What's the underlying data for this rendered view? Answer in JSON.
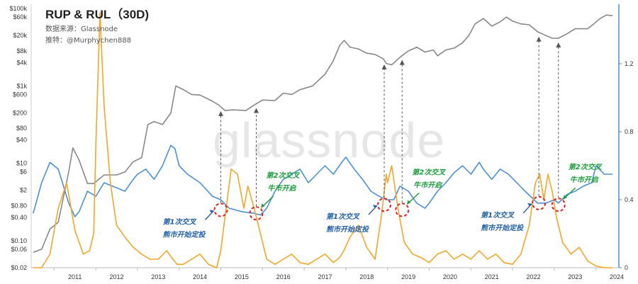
{
  "chart_data": {
    "type": "line",
    "title": "RUP & RUL（30D)",
    "source_line": "数据来源：Glassnode",
    "author_line": "推特：@Murphychen888",
    "watermark": "glassnode",
    "x_ticks": [
      "2011",
      "2012",
      "2013",
      "2014",
      "2015",
      "2016",
      "2017",
      "2018",
      "2019",
      "2020",
      "2021",
      "2022",
      "2023",
      "2024"
    ],
    "y_left_ticks": [
      "$100k",
      "$60k",
      "$20k",
      "$8k",
      "$4k",
      "$1k",
      "$600",
      "$200",
      "$80",
      "$40",
      "$10",
      "$6",
      "$2",
      "$0.80",
      "$0.40",
      "$0.10",
      "$0.06",
      "$0.02"
    ],
    "y_right_ticks": [
      "1.2",
      "0.8",
      "0.4",
      "0"
    ],
    "ylim_right": [
      0,
      1.55
    ],
    "series": [
      {
        "name": "",
        "axis": "left-log",
        "color": "#888888",
        "x": [
          2010.5,
          2010.7,
          2010.9,
          2011.1,
          2011.35,
          2011.45,
          2011.6,
          2011.8,
          2011.95,
          2012.2,
          2012.5,
          2012.7,
          2012.9,
          2013.1,
          2013.25,
          2013.4,
          2013.6,
          2013.8,
          2013.92,
          2014.1,
          2014.3,
          2014.5,
          2014.8,
          2014.95,
          2015.1,
          2015.3,
          2015.6,
          2015.8,
          2016.0,
          2016.3,
          2016.5,
          2016.7,
          2016.9,
          2017.2,
          2017.5,
          2017.7,
          2017.85,
          2017.96,
          2018.1,
          2018.3,
          2018.5,
          2018.7,
          2018.9,
          2018.97,
          2019.1,
          2019.3,
          2019.5,
          2019.7,
          2019.9,
          2020.1,
          2020.2,
          2020.4,
          2020.6,
          2020.8,
          2020.95,
          2021.1,
          2021.3,
          2021.5,
          2021.7,
          2021.85,
          2022.0,
          2022.2,
          2022.4,
          2022.6,
          2022.8,
          2022.95,
          2023.1,
          2023.3,
          2023.5,
          2023.8,
          2023.95,
          2024.1,
          2024.25,
          2024.4
        ],
        "values": [
          0.05,
          0.06,
          0.2,
          0.3,
          6,
          25,
          12,
          3,
          3,
          5,
          5,
          6,
          11,
          14,
          100,
          120,
          100,
          200,
          1000,
          800,
          600,
          580,
          400,
          320,
          230,
          240,
          230,
          320,
          430,
          420,
          650,
          600,
          800,
          1000,
          2000,
          4500,
          11000,
          15000,
          10000,
          9000,
          7000,
          6500,
          5000,
          3800,
          3500,
          5500,
          8000,
          10000,
          7500,
          8500,
          6000,
          8500,
          9500,
          13000,
          20000,
          40000,
          55000,
          35000,
          45000,
          60000,
          47000,
          40000,
          38000,
          25000,
          20000,
          17000,
          17000,
          22000,
          30000,
          30000,
          40000,
          55000,
          68000,
          65000
        ]
      },
      {
        "name": "",
        "axis": "right",
        "color": "#4a90d9",
        "x": [
          2010.5,
          2010.7,
          2010.9,
          2011.1,
          2011.2,
          2011.35,
          2011.5,
          2011.6,
          2011.8,
          2012.0,
          2012.2,
          2012.5,
          2012.7,
          2012.9,
          2013.0,
          2013.2,
          2013.4,
          2013.6,
          2013.8,
          2013.9,
          2014.0,
          2014.2,
          2014.5,
          2014.8,
          2015.0,
          2015.2,
          2015.5,
          2015.8,
          2015.95,
          2016.1,
          2016.3,
          2016.5,
          2016.7,
          2016.9,
          2017.1,
          2017.3,
          2017.5,
          2017.7,
          2017.9,
          2018.0,
          2018.2,
          2018.4,
          2018.6,
          2018.8,
          2018.97,
          2019.15,
          2019.3,
          2019.5,
          2019.7,
          2019.9,
          2020.0,
          2020.2,
          2020.4,
          2020.6,
          2020.8,
          2021.0,
          2021.2,
          2021.3,
          2021.5,
          2021.7,
          2021.9,
          2022.1,
          2022.3,
          2022.6,
          2022.8,
          2023.0,
          2023.1,
          2023.3,
          2023.5,
          2023.7,
          2023.9,
          2024.0,
          2024.2,
          2024.4
        ],
        "values": [
          0.32,
          0.5,
          0.62,
          0.58,
          0.5,
          0.38,
          0.3,
          0.33,
          0.45,
          0.42,
          0.5,
          0.47,
          0.45,
          0.52,
          0.55,
          0.58,
          0.52,
          0.6,
          0.72,
          0.7,
          0.6,
          0.55,
          0.5,
          0.42,
          0.4,
          0.35,
          0.33,
          0.32,
          0.31,
          0.35,
          0.45,
          0.52,
          0.55,
          0.58,
          0.5,
          0.55,
          0.6,
          0.55,
          0.62,
          0.65,
          0.58,
          0.52,
          0.45,
          0.42,
          0.4,
          0.4,
          0.48,
          0.45,
          0.38,
          0.35,
          0.38,
          0.45,
          0.5,
          0.56,
          0.6,
          0.55,
          0.62,
          0.58,
          0.52,
          0.58,
          0.55,
          0.5,
          0.45,
          0.38,
          0.38,
          0.4,
          0.38,
          0.43,
          0.45,
          0.48,
          0.5,
          0.6,
          0.55,
          0.55
        ]
      },
      {
        "name": "",
        "axis": "right",
        "color": "#f5a623",
        "x": [
          2010.5,
          2010.7,
          2010.9,
          2011.1,
          2011.3,
          2011.5,
          2011.7,
          2011.85,
          2011.95,
          2012.0,
          2012.1,
          2012.2,
          2012.35,
          2012.5,
          2012.7,
          2012.9,
          2013.1,
          2013.3,
          2013.5,
          2013.7,
          2013.85,
          2013.95,
          2014.1,
          2014.3,
          2014.5,
          2014.7,
          2014.9,
          2015.0,
          2015.1,
          2015.25,
          2015.4,
          2015.55,
          2015.65,
          2015.8,
          2015.95,
          2016.1,
          2016.3,
          2016.5,
          2016.7,
          2016.9,
          2017.1,
          2017.3,
          2017.5,
          2017.7,
          2017.85,
          2017.95,
          2018.1,
          2018.3,
          2018.5,
          2018.7,
          2018.85,
          2018.97,
          2019.0,
          2019.1,
          2019.25,
          2019.4,
          2019.6,
          2019.8,
          2020.0,
          2020.2,
          2020.4,
          2020.6,
          2020.8,
          2021.0,
          2021.2,
          2021.4,
          2021.6,
          2021.8,
          2022.0,
          2022.2,
          2022.4,
          2022.55,
          2022.65,
          2022.75,
          2022.85,
          2022.95,
          2023.05,
          2023.2,
          2023.4,
          2023.6,
          2023.8,
          2024.0,
          2024.2,
          2024.4
        ],
        "values": [
          0.0,
          0.0,
          0.08,
          0.35,
          0.5,
          0.22,
          0.08,
          0.1,
          0.2,
          0.7,
          1.5,
          0.95,
          0.5,
          0.25,
          0.18,
          0.12,
          0.08,
          0.05,
          0.05,
          0.1,
          0.05,
          0.02,
          0.02,
          0.05,
          0.08,
          0.02,
          0.0,
          0.1,
          0.3,
          0.58,
          0.55,
          0.35,
          0.48,
          0.35,
          0.2,
          0.05,
          0.02,
          0.05,
          0.08,
          0.03,
          0.02,
          0.05,
          0.08,
          0.03,
          0.06,
          0.1,
          0.18,
          0.25,
          0.12,
          0.05,
          0.3,
          0.55,
          0.5,
          0.6,
          0.35,
          0.15,
          0.08,
          0.06,
          0.03,
          0.08,
          0.1,
          0.05,
          0.08,
          0.05,
          0.1,
          0.05,
          0.08,
          0.03,
          0.02,
          0.08,
          0.25,
          0.5,
          0.55,
          0.4,
          0.55,
          0.45,
          0.3,
          0.15,
          0.08,
          0.12,
          0.04,
          0.01,
          0.0,
          0.0
        ]
      }
    ],
    "markers": [
      {
        "x": 2015.0,
        "axis_value": 0.34,
        "label_lines": [
          "第1次交叉",
          "熊市开始定投"
        ],
        "label_color": "#1f5fa8",
        "label_side": "left"
      },
      {
        "x": 2015.85,
        "axis_value": 0.32,
        "label_lines": [
          "第2次交叉",
          "牛市开启"
        ],
        "label_color": "#1a9e3a",
        "label_side": "right"
      },
      {
        "x": 2018.92,
        "axis_value": 0.37,
        "label_lines": [
          "第1次交叉",
          "熊市开始定投"
        ],
        "label_color": "#1f5fa8",
        "label_side": "left"
      },
      {
        "x": 2019.35,
        "axis_value": 0.34,
        "label_lines": [
          "第2次交叉",
          "牛市开启"
        ],
        "label_color": "#1a9e3a",
        "label_side": "right"
      },
      {
        "x": 2022.63,
        "axis_value": 0.38,
        "label_lines": [
          "第1次交叉",
          "熊市开始定投"
        ],
        "label_color": "#1f5fa8",
        "label_side": "left"
      },
      {
        "x": 2023.1,
        "axis_value": 0.37,
        "label_lines": [
          "第2次交叉",
          "牛市开启"
        ],
        "label_color": "#1a9e3a",
        "label_side": "right"
      }
    ],
    "grid": false,
    "legend": "none",
    "colors": {
      "price": "#888888",
      "rup": "#4a90d9",
      "rul": "#f5a623",
      "circle": "#e02020",
      "axis_right": "#4a90d9"
    }
  }
}
